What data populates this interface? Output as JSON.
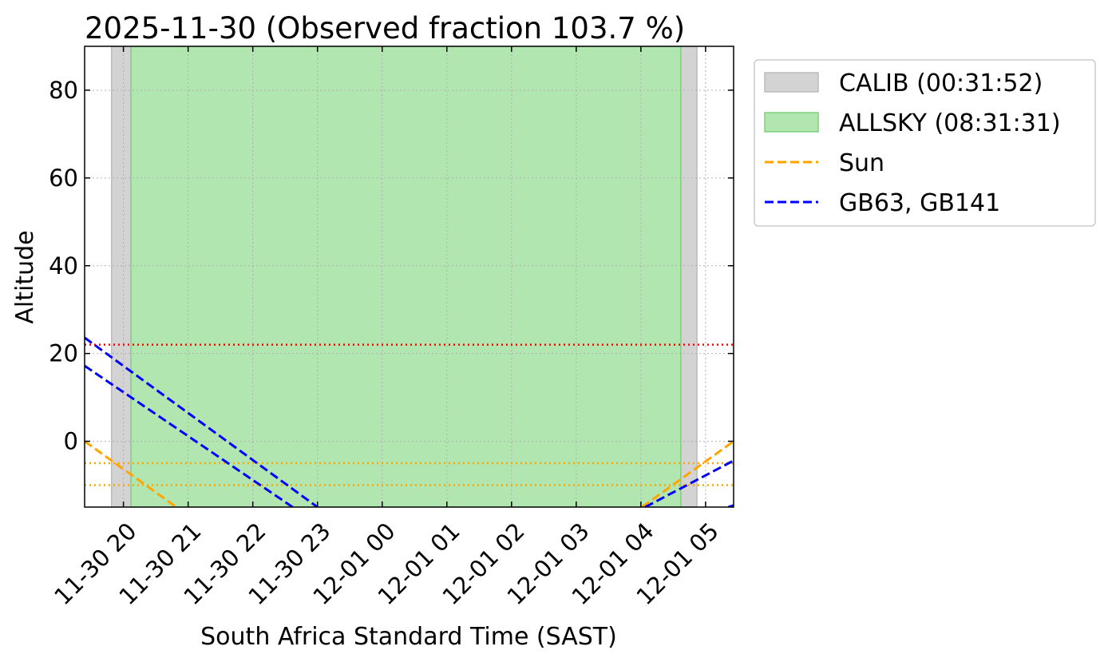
{
  "chart_data": {
    "type": "line",
    "title": "2025-11-30 (Observed fraction 103.7 %)",
    "x_label": "South Africa Standard Time (SAST)",
    "y_label": "Altitude",
    "xlim": [
      "11-30 19:24",
      "12-01 05:26"
    ],
    "xticks": [
      "11-30 20",
      "11-30 21",
      "11-30 22",
      "11-30 23",
      "12-01 00",
      "12-01 01",
      "12-01 02",
      "12-01 03",
      "12-01 04",
      "12-01 05"
    ],
    "ylim": [
      -15,
      90
    ],
    "yticks": [
      0,
      20,
      40,
      60,
      80
    ],
    "grid": true,
    "legend": "outside-right",
    "spans": [
      {
        "name": "CALIB (00:31:52)",
        "color": "#d3d3d3",
        "ranges": [
          [
            "11-30 19:49",
            "11-30 20:07"
          ],
          [
            "12-01 04:37",
            "12-01 04:52"
          ]
        ]
      },
      {
        "name": "ALLSKY (08:31:31)",
        "color": "#b1e6b1",
        "ranges": [
          [
            "11-30 20:07",
            "12-01 04:37"
          ]
        ]
      }
    ],
    "hlines": [
      {
        "y": 22,
        "color": "#ff0000"
      },
      {
        "y": -5,
        "color": "#ffa500"
      },
      {
        "y": -10,
        "color": "#ffa500"
      }
    ],
    "series": [
      {
        "name": "Sun",
        "color": "#ffa500",
        "x": [
          "11-30 19:24",
          "11-30 20:49",
          null,
          "12-01 04:01",
          "12-01 05:26"
        ],
        "values": [
          0,
          -15,
          null,
          -15,
          0
        ]
      },
      {
        "name": "GB63, GB141",
        "color": "#0000ff",
        "x": [
          "11-30 19:24",
          "11-30 23:00",
          null,
          "12-01 04:04",
          "12-01 05:26"
        ],
        "values": [
          23.6,
          -15,
          null,
          -15,
          -4.4
        ]
      },
      {
        "color": "#0000ff",
        "x": [
          "11-30 19:24",
          "11-30 22:37",
          null,
          "12-01 05:21",
          "12-01 05:26"
        ],
        "values": [
          17.2,
          -15,
          null,
          -15,
          -14.6
        ]
      }
    ]
  }
}
